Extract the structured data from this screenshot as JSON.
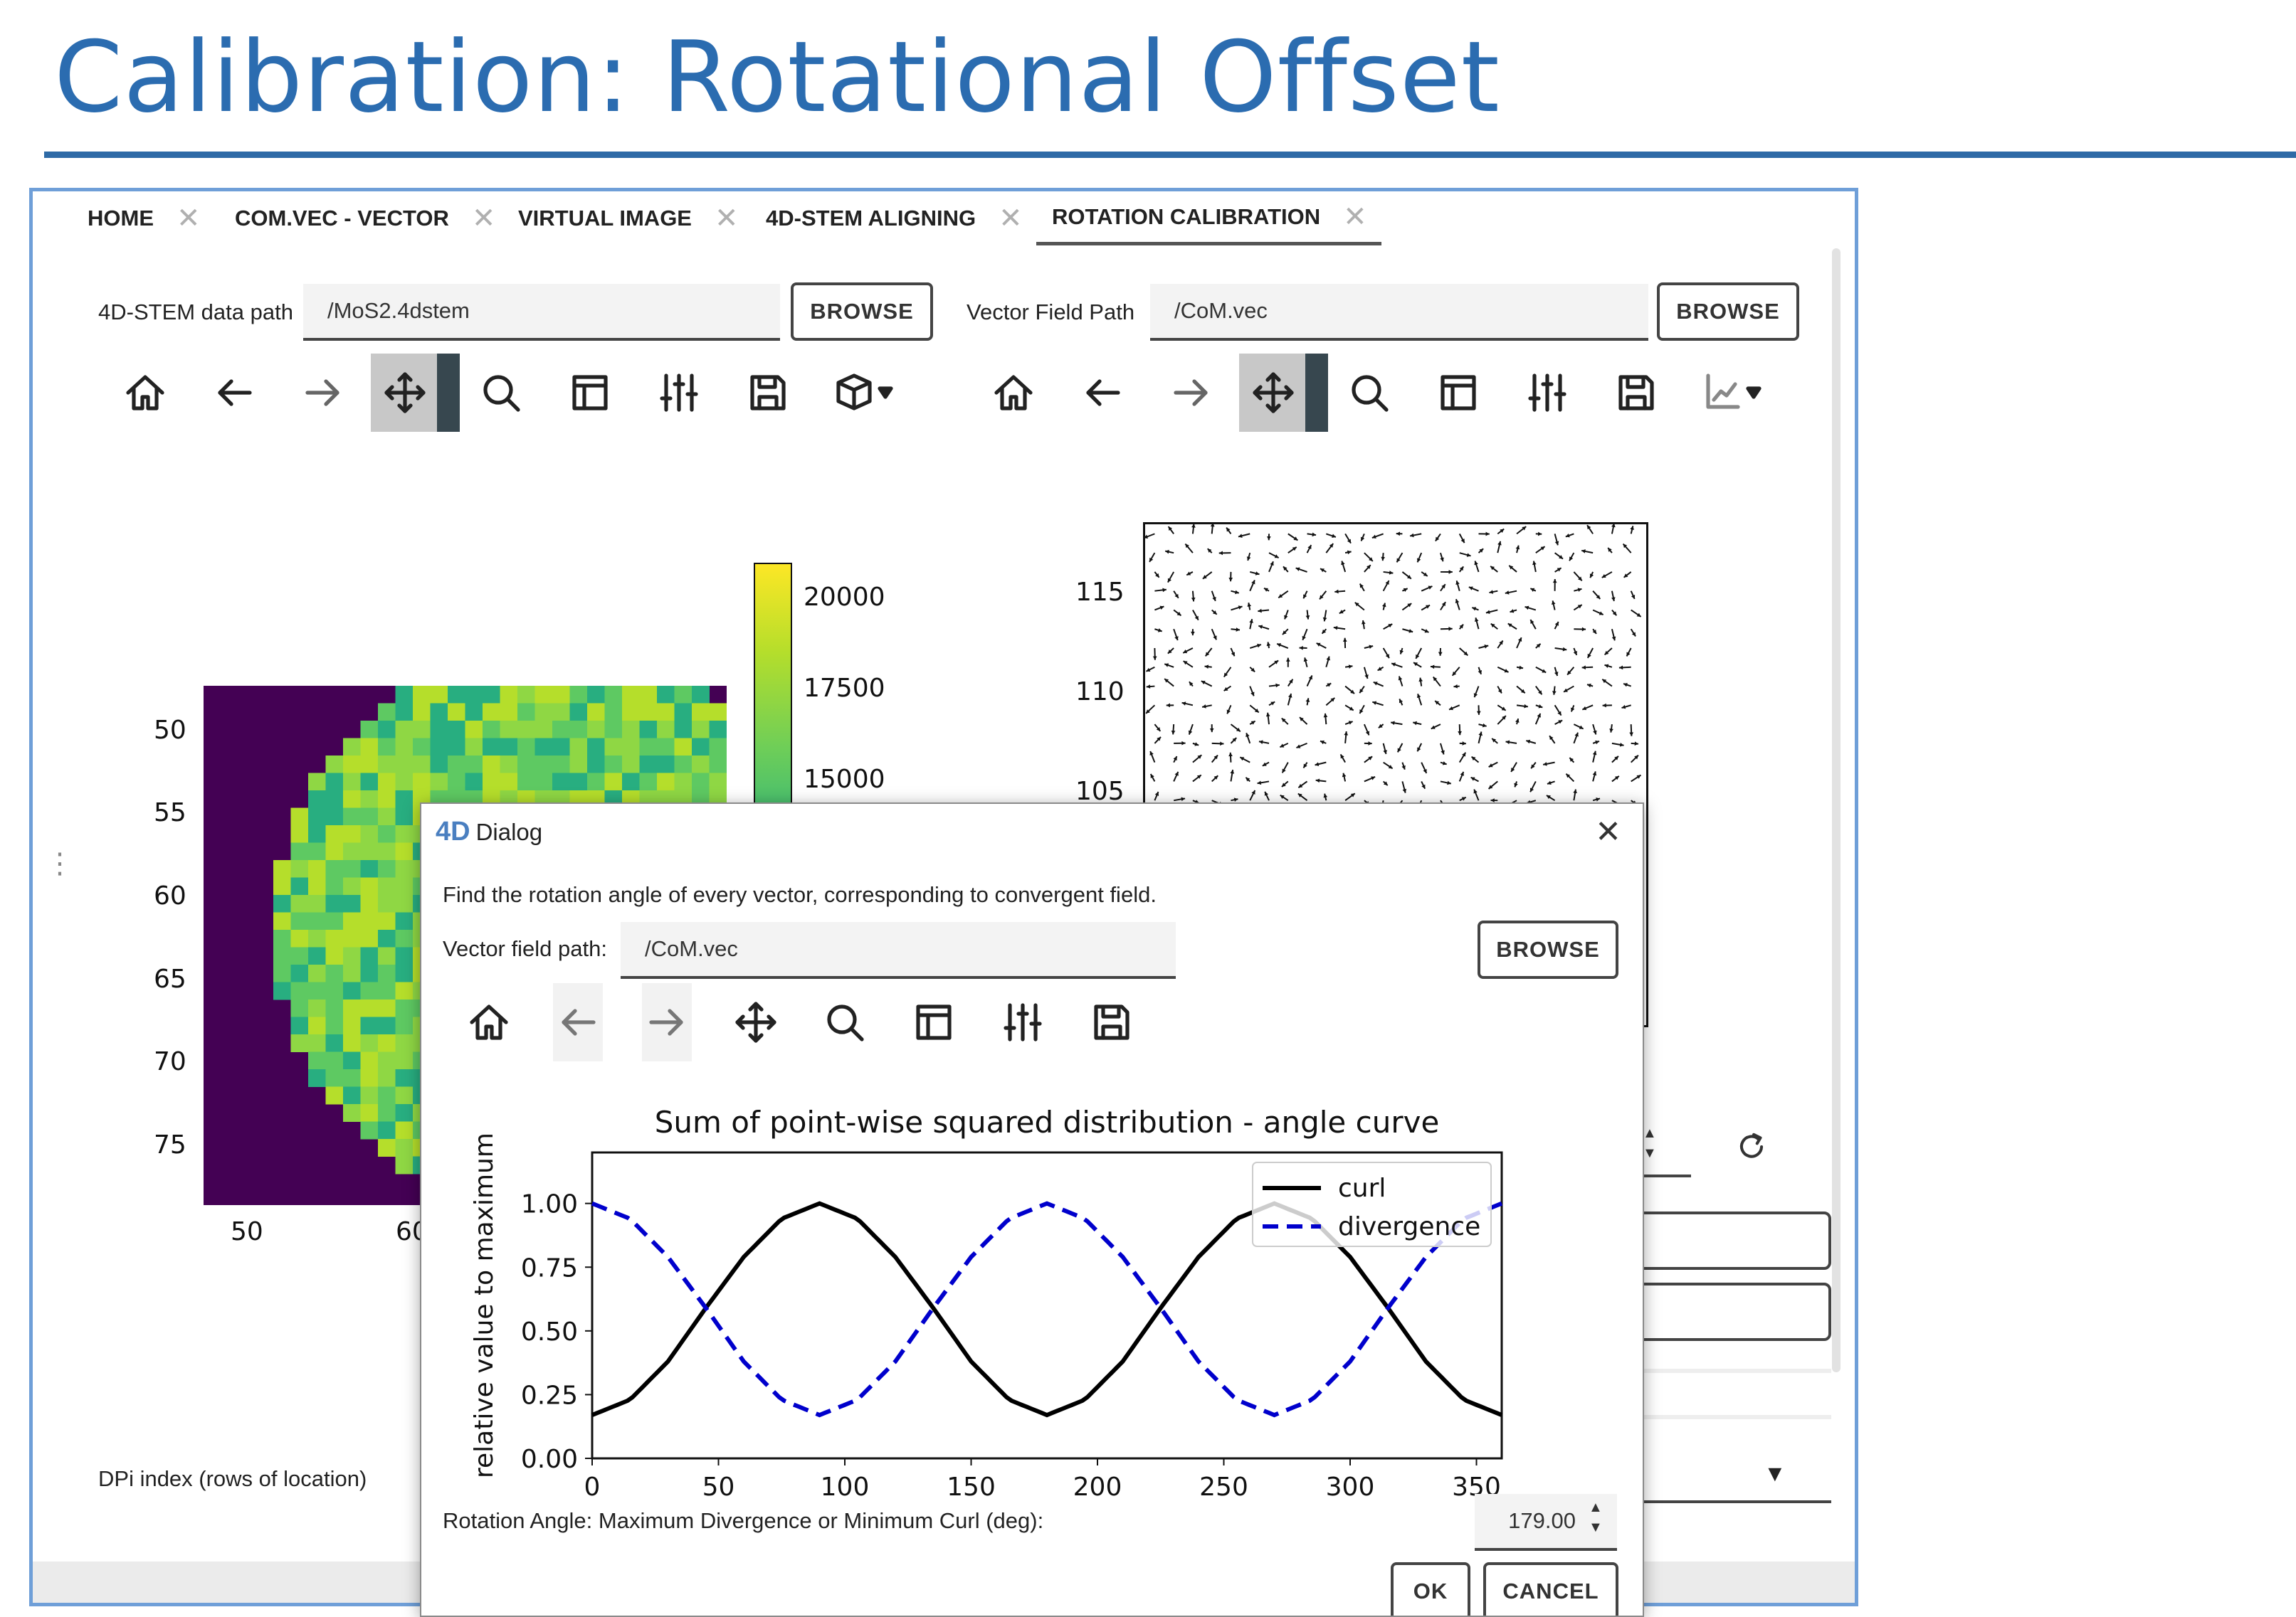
{
  "slide": {
    "title": "Calibration: Rotational Offset"
  },
  "tabs": [
    {
      "label": "HOME"
    },
    {
      "label": "COM.VEC - VECTOR"
    },
    {
      "label": "VIRTUAL IMAGE"
    },
    {
      "label": "4D-STEM ALIGNING"
    },
    {
      "label": "ROTATION CALIBRATION",
      "active": true
    }
  ],
  "tab_close_glyph": "✕",
  "left_panel": {
    "path_label": "4D-STEM data path",
    "path_value": "/MoS2.4dstem",
    "browse_label": "BROWSE",
    "toolbar_icons": [
      "home-icon",
      "back-arrow-icon",
      "forward-arrow-icon",
      "move-icon",
      "zoom-icon",
      "subplots-icon",
      "sliders-icon",
      "save-icon",
      "cube-dropdown-icon"
    ],
    "image": {
      "y_ticks": [
        "50",
        "55",
        "60",
        "65",
        "70",
        "75"
      ],
      "x_ticks": [
        "50",
        "60"
      ],
      "colormap": "viridis",
      "colorbar_ticks": [
        "20000",
        "17500",
        "15000"
      ]
    },
    "dpi_label": "DPi index (rows of location)"
  },
  "right_panel": {
    "path_label": "Vector Field Path",
    "path_value": "/CoM.vec",
    "browse_label": "BROWSE",
    "toolbar_icons": [
      "home-icon",
      "back-arrow-icon",
      "forward-arrow-icon",
      "move-icon",
      "zoom-icon",
      "subplots-icon",
      "sliders-icon",
      "save-icon",
      "axes-dropdown-icon"
    ],
    "quiver_y_ticks": [
      "115",
      "110",
      "105"
    ]
  },
  "dialog": {
    "title": "Dialog",
    "logo": "4D",
    "close_glyph": "✕",
    "description": "Find the rotation angle of every vector, corresponding to convergent field.",
    "path_label": "Vector field path:",
    "path_value": "/CoM.vec",
    "browse_label": "BROWSE",
    "toolbar_icons": [
      "home-icon",
      "back-arrow-icon",
      "forward-arrow-icon",
      "move-icon",
      "zoom-icon",
      "subplots-icon",
      "sliders-icon",
      "save-icon"
    ],
    "angle_label": "Rotation Angle: Maximum Divergence or Minimum Curl (deg):",
    "angle_value": "179.00",
    "ok_label": "OK",
    "cancel_label": "CANCEL"
  },
  "chart_data": {
    "type": "line",
    "title": "Sum of point-wise squared distribution - angle curve",
    "xlabel": "",
    "ylabel": "relative value to maximum",
    "xlim": [
      0,
      360
    ],
    "ylim": [
      0,
      1.2
    ],
    "x_ticks": [
      0,
      50,
      100,
      150,
      200,
      250,
      300,
      350
    ],
    "y_ticks": [
      "0.00",
      "0.25",
      "0.50",
      "0.75",
      "1.00"
    ],
    "legend_position": "top-right",
    "x": [
      0,
      15,
      30,
      45,
      60,
      75,
      90,
      105,
      120,
      135,
      150,
      165,
      180,
      195,
      210,
      225,
      240,
      255,
      270,
      285,
      300,
      315,
      330,
      345,
      360
    ],
    "series": [
      {
        "name": "curl",
        "color": "#000000",
        "style": "solid",
        "values": [
          0.17,
          0.23,
          0.38,
          0.59,
          0.79,
          0.94,
          1.0,
          0.94,
          0.79,
          0.59,
          0.38,
          0.23,
          0.17,
          0.23,
          0.38,
          0.59,
          0.79,
          0.94,
          1.0,
          0.94,
          0.79,
          0.59,
          0.38,
          0.23,
          0.17
        ]
      },
      {
        "name": "divergence",
        "color": "#0000cc",
        "style": "dashed",
        "values": [
          1.0,
          0.94,
          0.79,
          0.59,
          0.38,
          0.23,
          0.17,
          0.23,
          0.38,
          0.59,
          0.79,
          0.94,
          1.0,
          0.94,
          0.79,
          0.59,
          0.38,
          0.23,
          0.17,
          0.23,
          0.38,
          0.59,
          0.79,
          0.94,
          1.0
        ]
      }
    ]
  }
}
